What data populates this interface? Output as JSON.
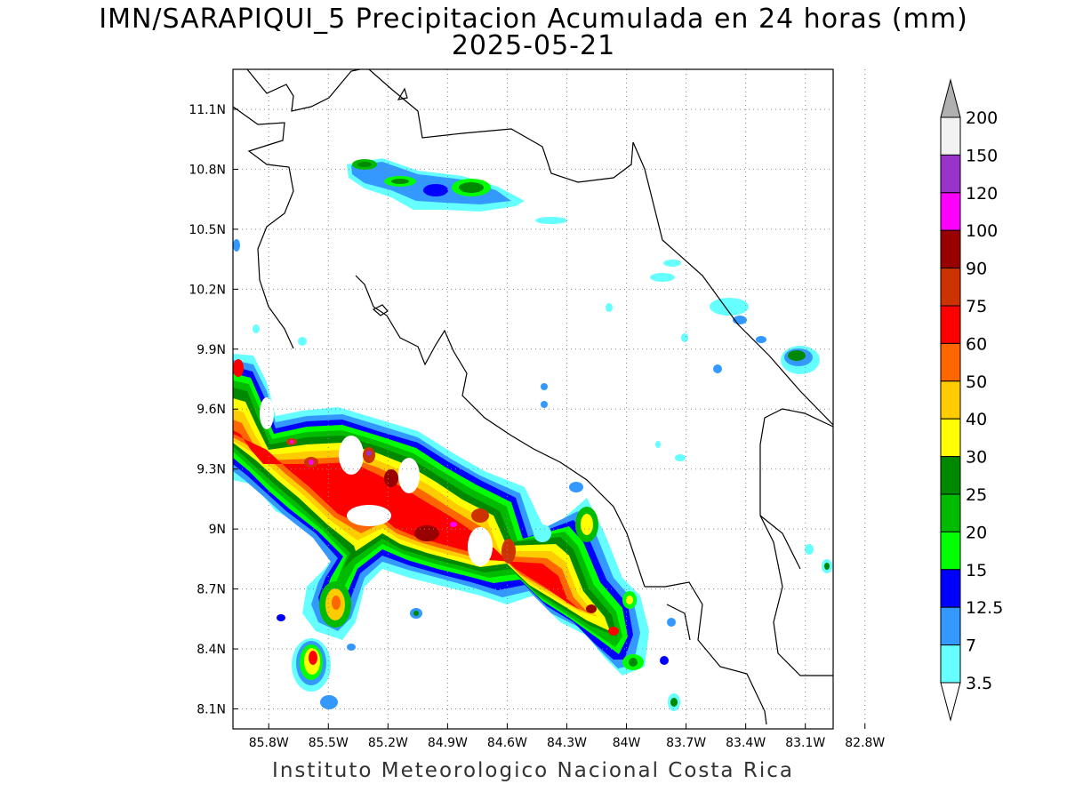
{
  "title": {
    "line1": "IMN/SARAPIQUI_5 Precipitacion Acumulada en 24 horas (mm)",
    "line2": "2025-05-21"
  },
  "footer": "Instituto Meteorologico Nacional Costa Rica",
  "map": {
    "lon_range": [
      -85.98,
      -82.96
    ],
    "lat_range": [
      8.0,
      11.3
    ],
    "lon_ticks": [
      "85.8W",
      "85.5W",
      "85.2W",
      "84.9W",
      "84.6W",
      "84.3W",
      "84W",
      "83.7W",
      "83.4W",
      "83.1W",
      "82.8W"
    ],
    "lat_ticks": [
      "11.1N",
      "10.8N",
      "10.5N",
      "10.2N",
      "9.9N",
      "9.6N",
      "9.3N",
      "9N",
      "8.7N",
      "8.4N",
      "8.1N"
    ],
    "grid": "dotted"
  },
  "colorbar": {
    "units": "mm",
    "levels": [
      "200",
      "150",
      "120",
      "100",
      "90",
      "75",
      "60",
      "50",
      "40",
      "30",
      "25",
      "20",
      "15",
      "12.5",
      "7",
      "3.5"
    ],
    "colors": [
      "#f2f2f2",
      "#9933cc",
      "#ff00ff",
      "#990000",
      "#cc3300",
      "#ff0000",
      "#ff6600",
      "#ffcc00",
      "#ffff00",
      "#008800",
      "#00bb00",
      "#00ff00",
      "#0000ff",
      "#3399ff",
      "#66ffff"
    ],
    "over_color": "#b0b0b0",
    "under_color": "#ffffff"
  }
}
